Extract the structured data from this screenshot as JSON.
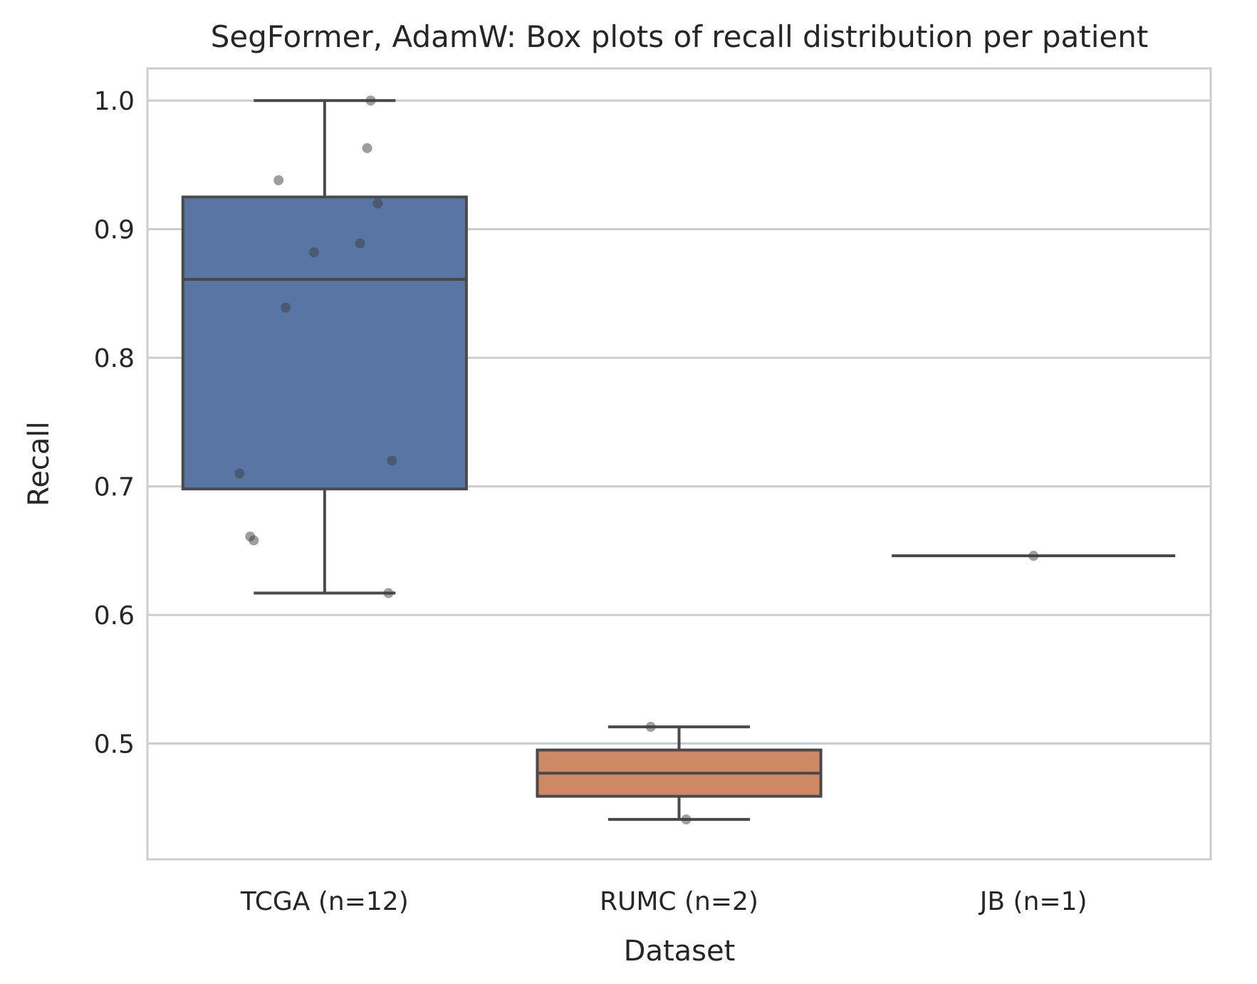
{
  "chart_data": {
    "type": "box",
    "title": "SegFormer, AdamW: Box plots of recall distribution per patient",
    "xlabel": "Dataset",
    "ylabel": "Recall",
    "ylim": [
      0.41,
      1.025
    ],
    "yticks": [
      "0.5",
      "0.6",
      "0.7",
      "0.8",
      "0.9",
      "1.0"
    ],
    "grid": "horizontal",
    "categories": [
      "TCGA (n=12)",
      "RUMC (n=2)",
      "JB (n=1)"
    ],
    "boxes": [
      {
        "category": "TCGA (n=12)",
        "color": "#5975a4",
        "whisker_low": 0.617,
        "q1": 0.698,
        "median": 0.861,
        "q3": 0.925,
        "whisker_high": 1.0,
        "points": [
          1.0,
          0.963,
          0.938,
          0.92,
          0.889,
          0.882,
          0.839,
          0.72,
          0.71,
          0.661,
          0.658,
          0.617
        ],
        "jitter": [
          0.13,
          0.12,
          -0.13,
          0.15,
          0.1,
          -0.03,
          -0.11,
          0.19,
          -0.24,
          -0.21,
          -0.2,
          0.18
        ]
      },
      {
        "category": "RUMC (n=2)",
        "color": "#cc8963",
        "whisker_low": 0.441,
        "q1": 0.459,
        "median": 0.477,
        "q3": 0.495,
        "whisker_high": 0.513,
        "points": [
          0.513,
          0.441
        ],
        "jitter": [
          -0.08,
          0.02
        ]
      },
      {
        "category": "JB (n=1)",
        "color": "#5f9e6e",
        "whisker_low": 0.646,
        "q1": 0.646,
        "median": 0.646,
        "q3": 0.646,
        "whisker_high": 0.646,
        "points": [
          0.646
        ],
        "jitter": [
          0.0
        ]
      }
    ]
  },
  "colors": {
    "grid": "#cccccc",
    "frame": "#cccccc",
    "box_edge": "#4a4a4a",
    "point": "#3d3d3d"
  }
}
